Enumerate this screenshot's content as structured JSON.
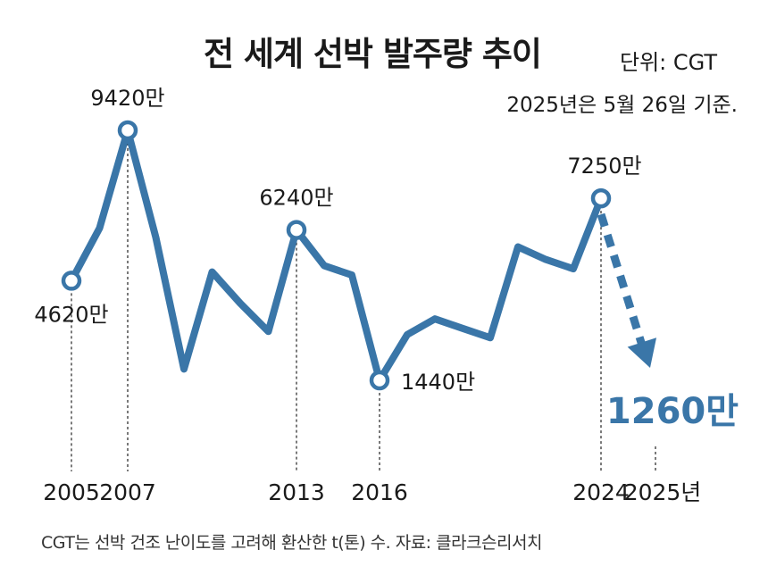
{
  "header": {
    "title": "전 세계 선박 발주량 추이",
    "unit": "단위: CGT",
    "basis": "2025년은 5월 26일 기준."
  },
  "footnote": "CGT는 선박 건조 난이도를 고려해 환산한 t(톤) 수. 자료: 클라크슨리서치",
  "colors": {
    "line": "#3a76a8",
    "text": "#1a1a1a"
  },
  "chart_data": {
    "type": "line",
    "title": "전 세계 선박 발주량 추이",
    "ylabel": "CGT",
    "grid": false,
    "x": [
      2005,
      2006,
      2007,
      2008,
      2009,
      2010,
      2011,
      2012,
      2013,
      2014,
      2015,
      2016,
      2017,
      2018,
      2019,
      2020,
      2021,
      2022,
      2023,
      2024,
      2025
    ],
    "series": [
      {
        "values": [
          4620,
          6300,
          9420,
          6000,
          1800,
          4900,
          3900,
          3000,
          6240,
          5100,
          4800,
          1440,
          2900,
          3400,
          3100,
          2800,
          5700,
          5300,
          5000,
          7250,
          1260
        ],
        "value_unit": "만 CGT"
      }
    ],
    "value_labels": [
      {
        "x": 2005,
        "text": "4620만"
      },
      {
        "x": 2007,
        "text": "9420만"
      },
      {
        "x": 2013,
        "text": "6240만"
      },
      {
        "x": 2016,
        "text": "1440만"
      },
      {
        "x": 2024,
        "text": "7250만"
      },
      {
        "x": 2025,
        "text": "1260만"
      }
    ],
    "x_ticks": [
      "2005",
      "2007",
      "2013",
      "2016",
      "2024",
      "2025년"
    ],
    "projection": {
      "from": 2024,
      "to": 2025,
      "style": "dashed-arrow"
    }
  }
}
